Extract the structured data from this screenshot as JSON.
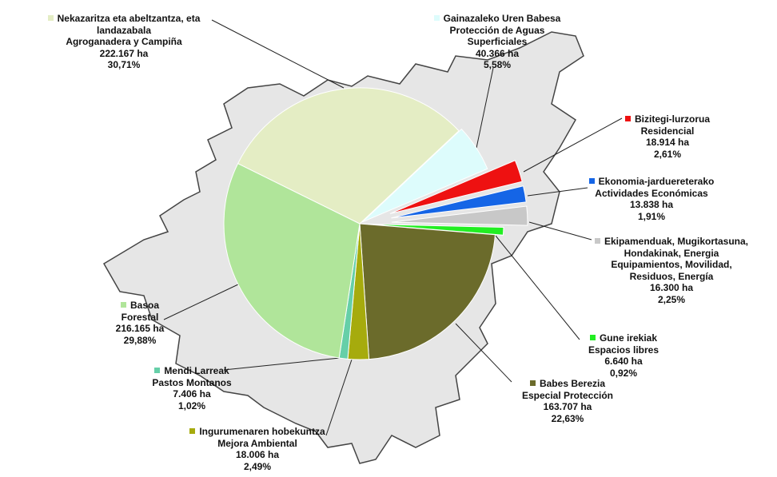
{
  "chart_data": {
    "type": "pie",
    "labels_eu": [
      "Nekazaritza eta abeltzantza, eta landazabala",
      "Gainazaleko Uren Babesa",
      "Bizitegi-lurzorua",
      "Ekonomia-jarduereterako",
      "Ekipamenduak, Mugikortasuna, Hondakinak, Energia",
      "Gune irekiak",
      "Babes Berezia",
      "Ingurumenaren hobekuntza",
      "Mendi Larreak",
      "Basoa"
    ],
    "labels_es": [
      "Agroganadera y Campiña",
      "Protección de Aguas Superficiales",
      "Residencial",
      "Actividades Económicas",
      "Equipamientos, Movilidad, Residuos, Energía",
      "Espacios libres",
      "Especial Protección",
      "Mejora Ambiental",
      "Pastos Montanos",
      "Forestal"
    ],
    "areas": [
      222167,
      40366,
      18914,
      13838,
      16300,
      6640,
      163707,
      18006,
      7406,
      216165
    ],
    "area_labels": [
      "222.167 ha",
      "40.366 ha",
      "18.914 ha",
      "13.838 ha",
      "16.300 ha",
      "6.640 ha",
      "163.707 ha",
      "18.006 ha",
      "7.406 ha",
      "216.165 ha"
    ],
    "values": [
      30.71,
      5.58,
      2.61,
      1.91,
      2.25,
      0.92,
      22.63,
      2.49,
      1.02,
      29.88
    ],
    "value_labels": [
      "30,71%",
      "5,58%",
      "2,61%",
      "1,91%",
      "2,25%",
      "0,92%",
      "22,63%",
      "2,49%",
      "1,02%",
      "29,88%"
    ],
    "colors": [
      "#e4edc4",
      "#ddfcfc",
      "#ee1111",
      "#1565e6",
      "#c8c8c8",
      "#22ee22",
      "#6b6b2b",
      "#a6ab0d",
      "#66cfa8",
      "#b0e59a"
    ]
  }
}
